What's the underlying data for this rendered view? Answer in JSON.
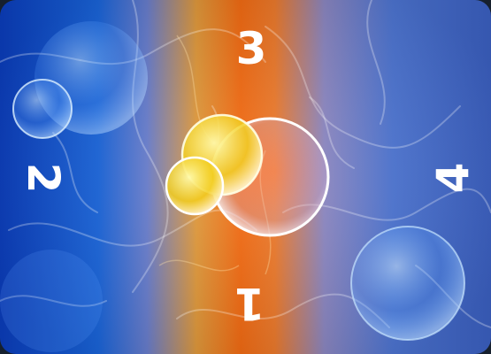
{
  "card": {
    "numbers": {
      "top": "3",
      "bottom": "1",
      "left": "2",
      "right": "4"
    },
    "colors": {
      "blue": "#1a67e0",
      "orange": "#f56a10",
      "bubble_yellow": "#f2d21a",
      "digit": "#ffffff"
    }
  }
}
